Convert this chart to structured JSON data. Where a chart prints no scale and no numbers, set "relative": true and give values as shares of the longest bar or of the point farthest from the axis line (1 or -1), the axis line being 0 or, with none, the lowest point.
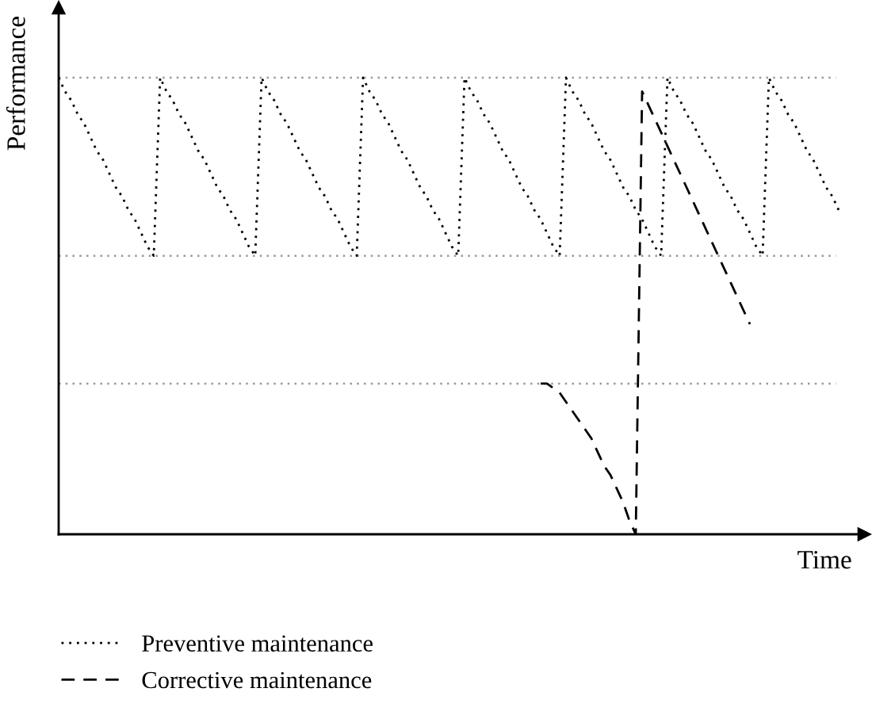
{
  "chart_data": {
    "type": "line",
    "relative": true,
    "xlabel": "Time",
    "ylabel": "Performance",
    "legend": "bottom",
    "categories": [
      null,
      null,
      null,
      null,
      null,
      null,
      null,
      null,
      null,
      null,
      null,
      null,
      null,
      null,
      null,
      null,
      null,
      null,
      null,
      null,
      null,
      null,
      null,
      null,
      null,
      null,
      null,
      null,
      null,
      null,
      null,
      null,
      null,
      null,
      null,
      null,
      null,
      null,
      null,
      null,
      null,
      null,
      null,
      null,
      null,
      null,
      null,
      null,
      null,
      null,
      null,
      null,
      null,
      null,
      null,
      null,
      null,
      null,
      null,
      null,
      null,
      null,
      null,
      null,
      null,
      null,
      null,
      null,
      null,
      null,
      null,
      null,
      null,
      null,
      null,
      null,
      null,
      null,
      null,
      null,
      null,
      null,
      null,
      null,
      null,
      null,
      null,
      null,
      null,
      null,
      null,
      null,
      null,
      null,
      null,
      null,
      null,
      null,
      null,
      null,
      null,
      null,
      null,
      null,
      null,
      null,
      null,
      null,
      null,
      null,
      null,
      null,
      null,
      null,
      null,
      null,
      null,
      null,
      null,
      null,
      null,
      null,
      null,
      null,
      null,
      null,
      null,
      null
    ],
    "series": [
      {
        "name": "Preventive maintenance",
        "color": "#000000",
        "line_style": "dotted",
        "values": [
          1,
          0.97,
          0.95,
          0.92,
          0.9,
          0.87,
          0.84,
          0.82,
          0.79,
          0.76,
          0.74,
          0.71,
          0.69,
          0.66,
          0.63,
          0.61,
          1,
          0.97,
          0.95,
          0.92,
          0.9,
          0.87,
          0.84,
          0.82,
          0.79,
          0.76,
          0.74,
          0.71,
          0.69,
          0.66,
          0.63,
          0.61,
          1,
          0.97,
          0.95,
          0.92,
          0.9,
          0.87,
          0.84,
          0.82,
          0.79,
          0.76,
          0.74,
          0.71,
          0.69,
          0.66,
          0.63,
          0.61,
          1,
          0.97,
          0.95,
          0.92,
          0.9,
          0.87,
          0.84,
          0.82,
          0.79,
          0.76,
          0.74,
          0.71,
          0.69,
          0.66,
          0.63,
          0.61,
          1,
          0.97,
          0.95,
          0.92,
          0.9,
          0.87,
          0.84,
          0.82,
          0.79,
          0.76,
          0.74,
          0.71,
          0.69,
          0.66,
          0.63,
          0.61,
          1,
          0.97,
          0.95,
          0.92,
          0.9,
          0.87,
          0.84,
          0.82,
          0.79,
          0.76,
          0.74,
          0.71,
          0.69,
          0.66,
          0.63,
          0.61,
          1,
          0.97,
          0.95,
          0.92,
          0.9,
          0.87,
          0.84,
          0.82,
          0.79,
          0.76,
          0.74,
          0.71,
          0.69,
          0.66,
          0.63,
          0.61,
          1,
          0.97,
          0.95,
          0.92,
          0.9,
          0.87,
          0.84,
          0.82,
          0.79,
          0.76,
          0.74,
          0.71,
          null,
          null,
          null,
          null
        ]
      },
      {
        "name": "Corrective maintenance",
        "color": "#000000",
        "line_style": "dashed",
        "values": [
          null,
          null,
          null,
          null,
          null,
          null,
          null,
          null,
          null,
          null,
          null,
          null,
          null,
          null,
          null,
          null,
          null,
          null,
          null,
          null,
          null,
          null,
          null,
          null,
          null,
          null,
          null,
          null,
          null,
          null,
          null,
          null,
          null,
          null,
          null,
          null,
          null,
          null,
          null,
          null,
          null,
          null,
          null,
          null,
          null,
          null,
          null,
          null,
          null,
          null,
          null,
          null,
          null,
          null,
          null,
          null,
          null,
          null,
          null,
          null,
          null,
          null,
          null,
          null,
          null,
          null,
          null,
          null,
          null,
          null,
          null,
          null,
          null,
          null,
          null,
          null,
          0.33,
          0.33,
          0.32,
          0.31,
          0.29,
          0.27,
          0.25,
          0.23,
          0.21,
          0.18,
          0.15,
          0.13,
          0.1,
          0.07,
          0.03,
          0,
          0.97,
          0.94,
          0.91,
          0.88,
          0.85,
          0.82,
          0.79,
          0.76,
          0.73,
          0.7,
          0.67,
          0.64,
          0.61,
          0.58,
          0.55,
          0.52,
          0.49,
          0.46,
          null,
          null,
          null,
          null,
          null,
          null,
          null,
          null,
          null,
          null,
          null,
          null,
          null,
          null,
          null,
          null,
          null,
          null
        ]
      }
    ],
    "ref_lines": [
      {
        "axis": "y",
        "value": 1,
        "color": "#999999",
        "line_style": "dotted"
      },
      {
        "axis": "y",
        "value": 0.61,
        "color": "#999999",
        "line_style": "dotted"
      },
      {
        "axis": "y",
        "value": 0.33,
        "color": "#999999",
        "line_style": "dotted"
      }
    ]
  }
}
